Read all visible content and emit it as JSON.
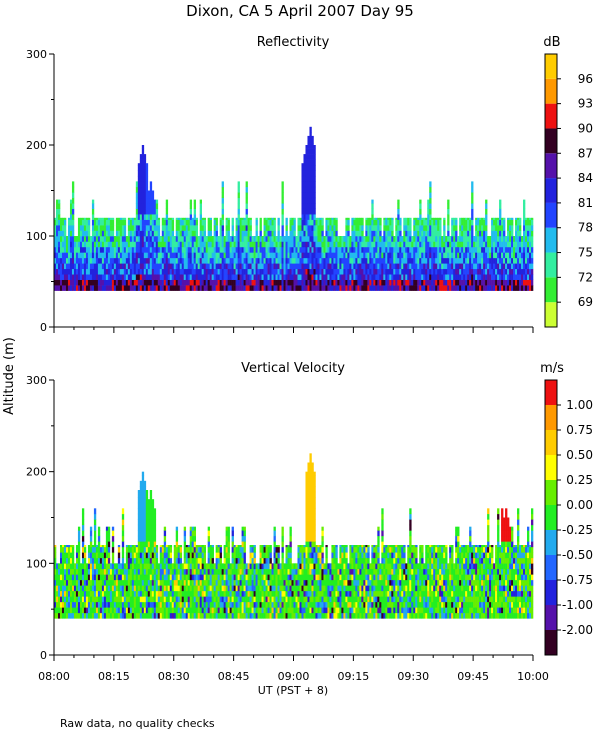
{
  "figure": {
    "title": "Dixon, CA  5 April 2007  Day  95",
    "ylabel": "Altitude (m)",
    "xlabel": "UT  (PST + 8)",
    "footnote": "Raw data, no quality checks",
    "xticks": [
      "08:00",
      "08:15",
      "08:30",
      "08:45",
      "09:00",
      "09:15",
      "09:30",
      "09:45",
      "10:00"
    ]
  },
  "chart_data": [
    {
      "type": "heatmap",
      "title": "Reflectivity",
      "units": "dB",
      "xlabel": "UT  (PST + 8)",
      "ylabel": "Altitude (m)",
      "xlim": [
        "08:00",
        "10:00"
      ],
      "ylim": [
        0,
        300
      ],
      "yticks": [
        0,
        100,
        200,
        300
      ],
      "colorbar": {
        "levels": [
          "69",
          "72",
          "75",
          "78",
          "81",
          "84",
          "87",
          "90",
          "93",
          "96"
        ],
        "colors": [
          "#ccff33",
          "#33ee33",
          "#33eea0",
          "#22bbee",
          "#2244ff",
          "#2222dd",
          "#5511aa",
          "#330022",
          "#ee1111",
          "#ff9900",
          "#ffcc00"
        ]
      },
      "profile": {
        "time_step_min": 0.5,
        "base_m": 40,
        "typical_top_m": 120,
        "peaks": [
          {
            "time": "08:22",
            "top_m": 200,
            "level": "81"
          },
          {
            "time": "08:24",
            "top_m": 160,
            "level": "78"
          },
          {
            "time": "09:04",
            "top_m": 220,
            "level": "81"
          },
          {
            "time": "09:03",
            "top_m": 200,
            "level": "81"
          }
        ]
      }
    },
    {
      "type": "heatmap",
      "title": "Vertical Velocity",
      "units": "m/s",
      "xlabel": "UT  (PST + 8)",
      "ylabel": "Altitude (m)",
      "xlim": [
        "08:00",
        "10:00"
      ],
      "ylim": [
        0,
        300
      ],
      "yticks": [
        0,
        100,
        200,
        300
      ],
      "colorbar": {
        "levels": [
          "-2.00",
          "-1.00",
          "-0.75",
          "-0.50",
          "-0.25",
          "0.00",
          "0.25",
          "0.50",
          "0.75",
          "1.00"
        ],
        "colors": [
          "#330022",
          "#5511aa",
          "#2222dd",
          "#2266ff",
          "#22aaee",
          "#22ee22",
          "#66ee00",
          "#ffff00",
          "#ffcc00",
          "#ff9900",
          "#ee1111"
        ]
      },
      "profile": {
        "time_step_min": 0.5,
        "base_m": 40,
        "typical_top_m": 120,
        "peaks": [
          {
            "time": "08:22",
            "top_m": 200,
            "level": "-0.50"
          },
          {
            "time": "08:24",
            "top_m": 180,
            "level": "-0.25"
          },
          {
            "time": "09:04",
            "top_m": 220,
            "level": "0.50"
          },
          {
            "time": "09:53",
            "top_m": 160,
            "level": "1.00"
          }
        ]
      }
    }
  ]
}
